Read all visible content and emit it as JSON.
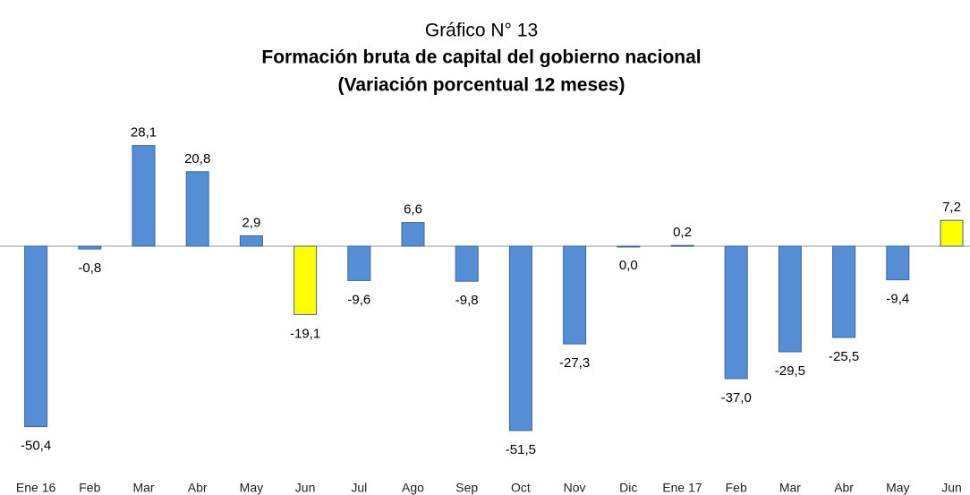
{
  "chart_data": {
    "type": "bar",
    "title": "Gráfico N° 13",
    "subtitle": "Formación bruta de capital del gobierno nacional",
    "subtitle2": "(Variación porcentual 12 meses)",
    "categories": [
      "Ene 16",
      "Feb",
      "Mar",
      "Abr",
      "May",
      "Jun",
      "Jul",
      "Ago",
      "Sep",
      "Oct",
      "Nov",
      "Dic",
      "Ene 17",
      "Feb",
      "Mar",
      "Abr",
      "May",
      "Jun"
    ],
    "values": [
      -50.4,
      -0.8,
      28.1,
      20.8,
      2.9,
      -19.1,
      -9.6,
      6.6,
      -9.8,
      -51.5,
      -27.3,
      0.0,
      0.2,
      -37.0,
      -29.5,
      -25.5,
      -9.4,
      7.2
    ],
    "value_labels": [
      "-50,4",
      "-0,8",
      "28,1",
      "20,8",
      "2,9",
      "-19,1",
      "-9,6",
      "6,6",
      "-9,8",
      "-51,5",
      "-27,3",
      "0,0",
      "0,2",
      "-37,0",
      "-29,5",
      "-25,5",
      "-9,4",
      "7,2"
    ],
    "colors": [
      "#558ed5",
      "#558ed5",
      "#558ed5",
      "#558ed5",
      "#558ed5",
      "#ffff00",
      "#558ed5",
      "#558ed5",
      "#558ed5",
      "#558ed5",
      "#558ed5",
      "#558ed5",
      "#558ed5",
      "#558ed5",
      "#558ed5",
      "#558ed5",
      "#558ed5",
      "#ffff00"
    ],
    "ylim": [
      -55,
      32
    ],
    "grid": false
  }
}
